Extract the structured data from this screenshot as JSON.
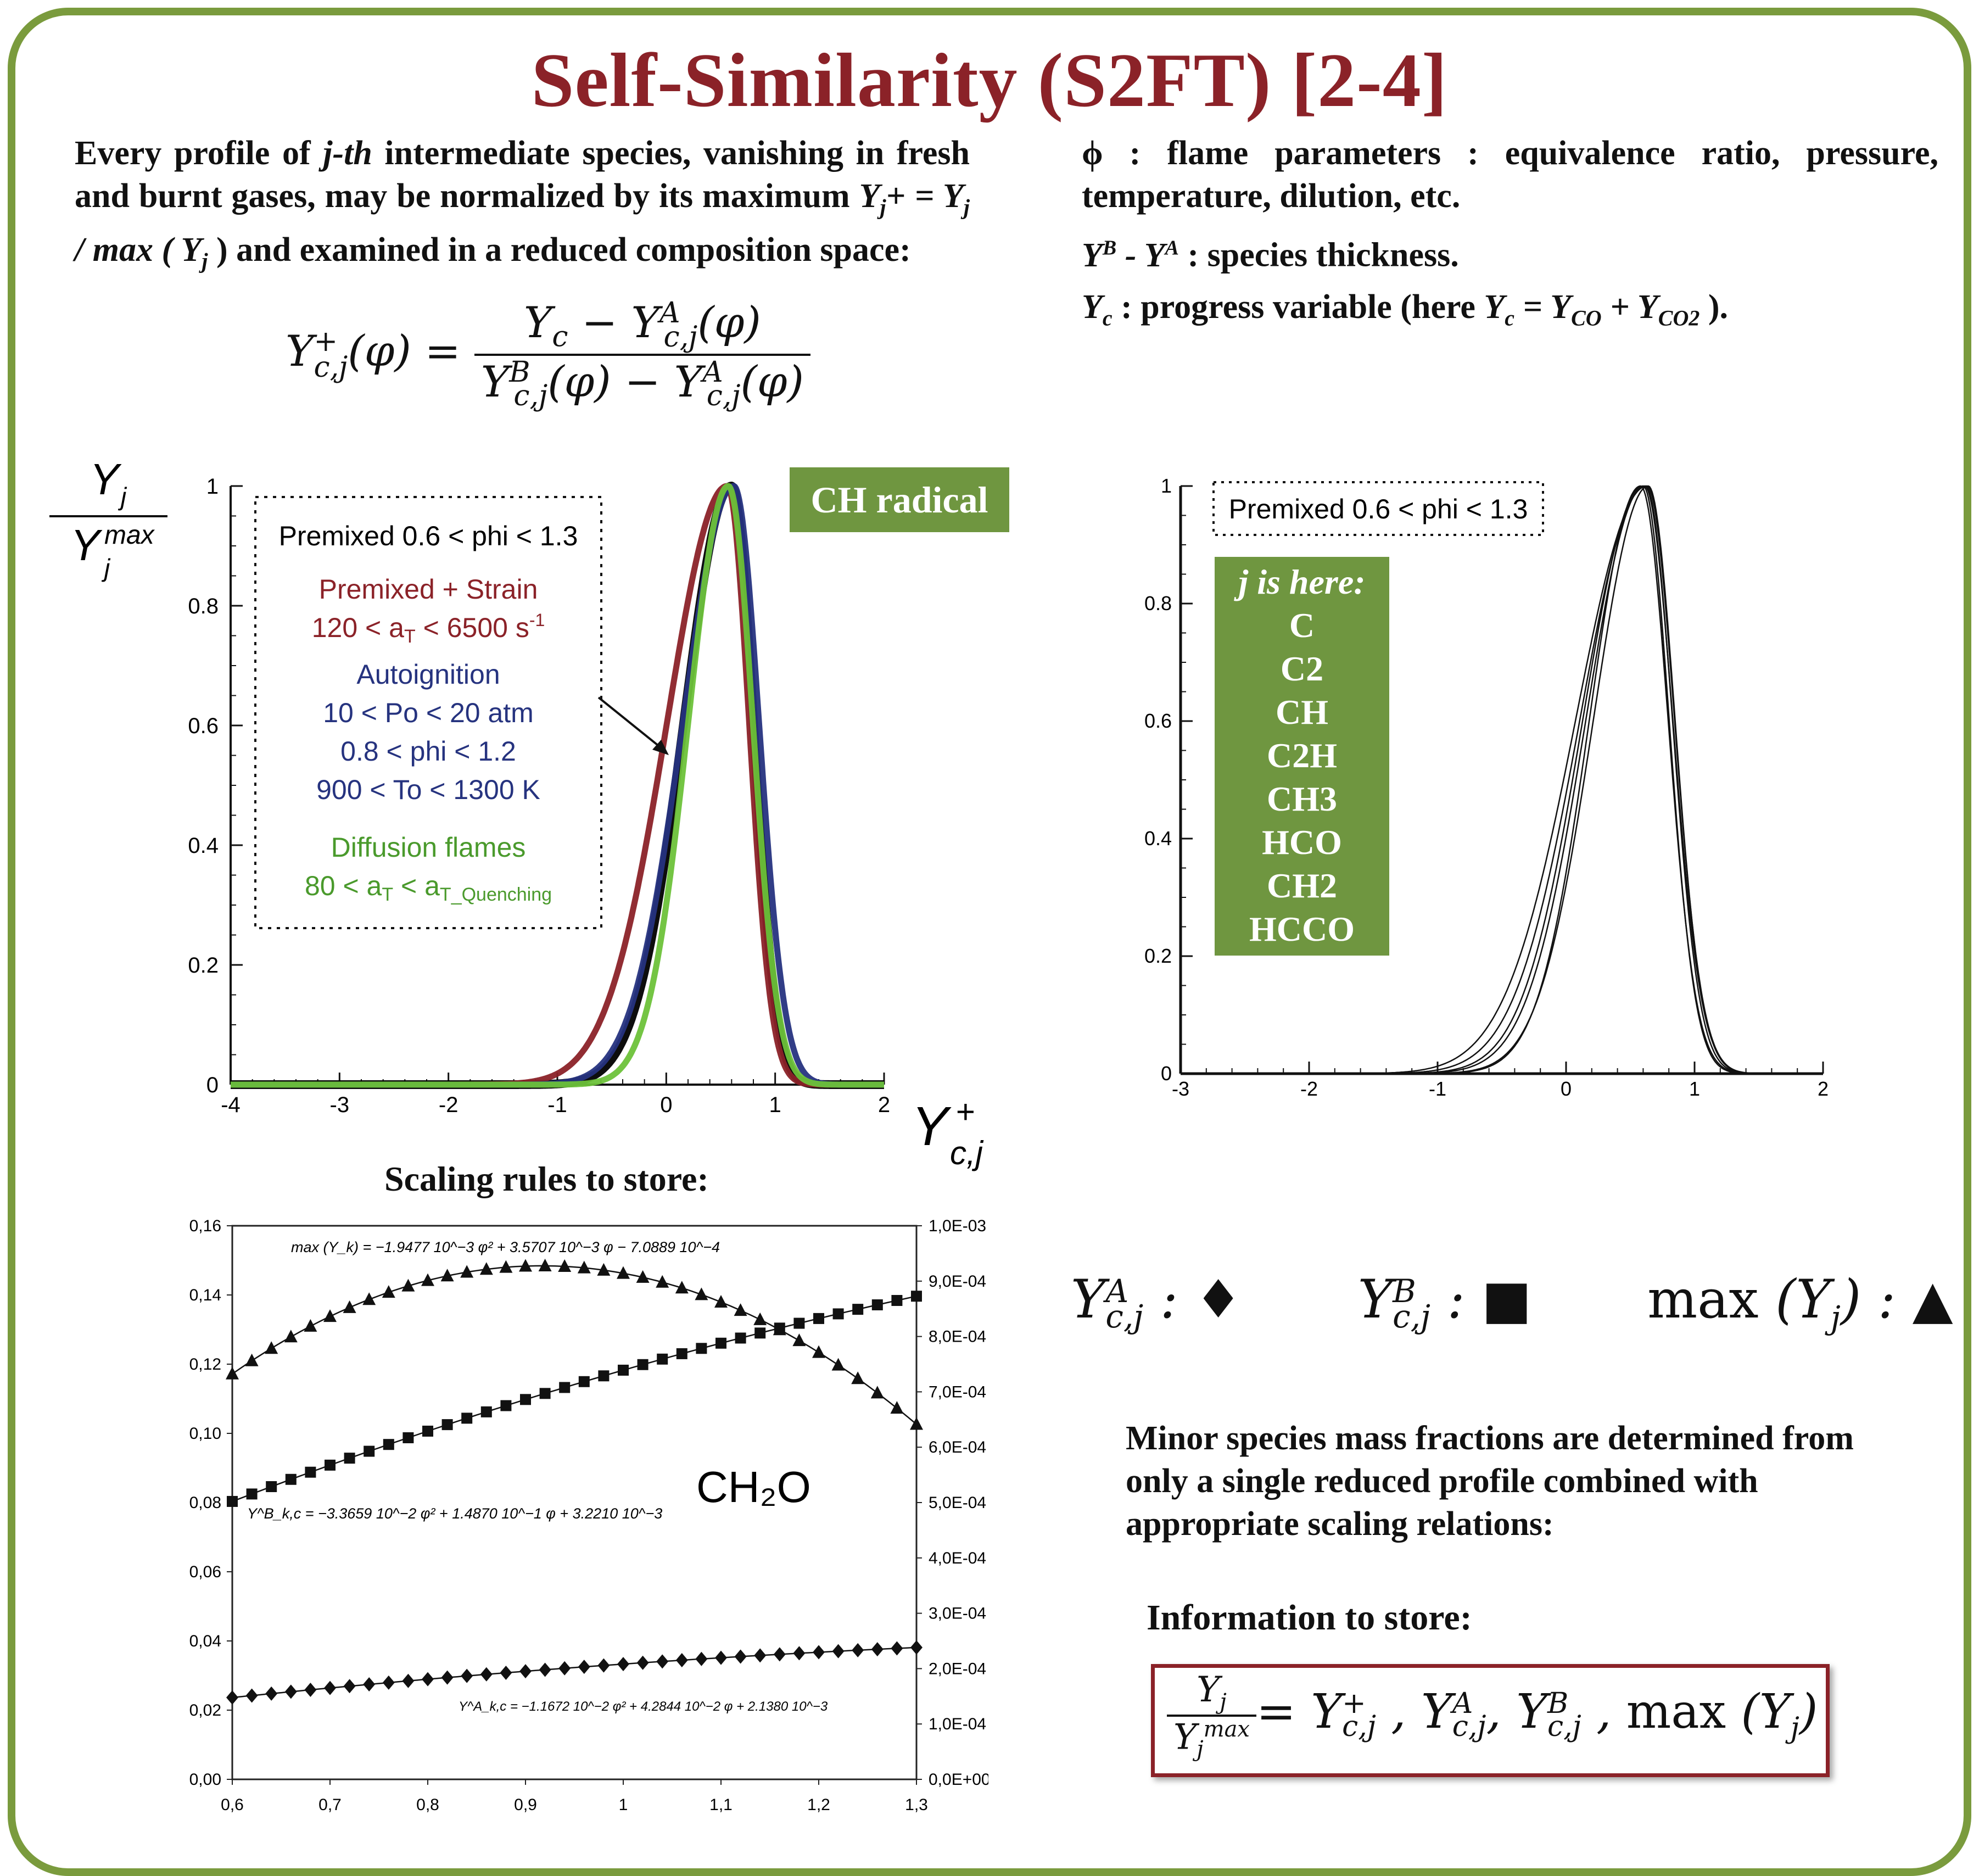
{
  "title": "Self-Similarity (S2FT) [2-4]",
  "intro": {
    "part1": "Every profile of ",
    "jth": "j-th",
    "part2": " intermediate species, vanishing in fresh and burnt gases, may be normalized by its maximum ",
    "yjplus": "Y",
    "eq_text": "+ = Y",
    "slash": " / max ( Y",
    "close": " ) and examined in a reduced composition space:"
  },
  "right_defs": {
    "phi_line": "ϕ : flame parameters : equivalence ratio, pressure, temperature, dilution, etc.",
    "thickness_line": " : species thickness.",
    "progress_line_a": " : progress variable (here ",
    "progress_line_b": " )."
  },
  "ch_radical_tag": "CH radical",
  "j_box": {
    "title": "j is here:",
    "species": [
      "C",
      "C2",
      "CH",
      "C2H",
      "CH3",
      "HCO",
      "CH2",
      "HCCO"
    ]
  },
  "scaling_title": "Scaling rules to store:",
  "symbols_legend": {
    "a_symbol": "♦",
    "b_symbol": "■",
    "max_symbol": "▲",
    "max_text": "max"
  },
  "minor_species_text": "Minor species mass fractions are determined from only a single reduced profile combined with appropriate scaling relations:",
  "info_title": "Information to store:",
  "ch2o_label": "CH₂O",
  "chart_data": [
    {
      "type": "line",
      "ylabel_top": "Y",
      "xlabel": "Y+ c,j",
      "xlim": [
        -4,
        2
      ],
      "ylim": [
        0,
        1
      ],
      "x_ticks": [
        "-4",
        "-3",
        "-2",
        "-1",
        "0",
        "1",
        "2"
      ],
      "y_ticks": [
        "0",
        "0.2",
        "0.4",
        "0.6",
        "0.8",
        "1"
      ],
      "legend_box": {
        "premixed": "Premixed 0.6 < phi < 1.3",
        "strain_title": "Premixed + Strain",
        "strain_range": "120 < a",
        "strain_unit": " < 6500 s",
        "autoignition_title": "Autoignition",
        "auto_p": "10 < Po < 20 atm",
        "auto_phi": "0.8 < phi < 1.2",
        "auto_T": "900 < To < 1300 K",
        "diffusion_title": "Diffusion flames",
        "diffusion_range": "80 < a",
        "diffusion_mid": " < a",
        "diffusion_sub": "T_Quenching"
      },
      "series": [
        {
          "name": "Premixed 0.6 < phi < 1.3",
          "color": "#000000",
          "peak_x": 0.6,
          "left_width": 0.62,
          "right_width": 0.33
        },
        {
          "name": "Premixed + Strain",
          "color": "#8b2228",
          "peak_x": 0.56,
          "left_width": 0.78,
          "right_width": 0.33
        },
        {
          "name": "Autoignition",
          "color": "#26337f",
          "peak_x": 0.62,
          "left_width": 0.66,
          "right_width": 0.38
        },
        {
          "name": "Diffusion flames",
          "color": "#6dc23a",
          "peak_x": 0.57,
          "left_width": 0.52,
          "right_width": 0.37
        }
      ]
    },
    {
      "type": "line",
      "xlim": [
        -3,
        2
      ],
      "ylim": [
        0,
        1
      ],
      "x_ticks": [
        "-3",
        "-2",
        "-1",
        "0",
        "1",
        "2"
      ],
      "y_ticks": [
        "0",
        "0.2",
        "0.4",
        "0.6",
        "0.8",
        "1"
      ],
      "legend": "Premixed 0.6 < phi < 1.3",
      "series": [
        {
          "peak_x": 0.62,
          "left_width": 0.72,
          "right_width": 0.34
        },
        {
          "peak_x": 0.6,
          "left_width": 0.66,
          "right_width": 0.33
        },
        {
          "peak_x": 0.64,
          "left_width": 0.6,
          "right_width": 0.34
        },
        {
          "peak_x": 0.58,
          "left_width": 0.56,
          "right_width": 0.35
        },
        {
          "peak_x": 0.63,
          "left_width": 0.78,
          "right_width": 0.35
        },
        {
          "peak_x": 0.61,
          "left_width": 0.64,
          "right_width": 0.36
        }
      ]
    },
    {
      "type": "scatter",
      "xlim": [
        0.6,
        1.3
      ],
      "ylim_left": [
        0,
        0.16
      ],
      "ylim_right": [
        0,
        0.001
      ],
      "x_ticks": [
        "0,6",
        "0,7",
        "0,8",
        "0,9",
        "1",
        "1,1",
        "1,2",
        "1,3"
      ],
      "y_left_ticks": [
        "0,00",
        "0,02",
        "0,04",
        "0,06",
        "0,08",
        "0,10",
        "0,12",
        "0,14",
        "0,16"
      ],
      "y_right_ticks": [
        "0,0E+00",
        "1,0E-04",
        "2,0E-04",
        "3,0E-04",
        "4,0E-04",
        "5,0E-04",
        "6,0E-04",
        "7,0E-04",
        "8,0E-04",
        "9,0E-04",
        "1,0E-03"
      ],
      "annotations": {
        "max_fit": "max (Y_k) = −1.9477 10^−3 φ² + 3.5707 10^−3 φ − 7.0889 10^−4",
        "b_fit": "Y^B_k,c = −3.3659 10^−2 φ² + 1.4870 10^−1 φ + 3.2210 10^−3",
        "a_fit": "Y^A_k,c = −1.1672 10^−2 φ² + 4.2844 10^−2 φ + 2.1380 10^−3"
      },
      "series": [
        {
          "name": "Y^B",
          "axis": "left",
          "marker": "square",
          "coeffs": [
            -0.033659,
            0.1487,
            0.003221
          ]
        },
        {
          "name": "Y^A",
          "axis": "left",
          "marker": "diamond",
          "coeffs": [
            -0.011672,
            0.042844,
            0.002138
          ]
        },
        {
          "name": "max(Y)",
          "axis": "right",
          "marker": "triangle",
          "coeffs": [
            -0.0019477,
            0.0035707,
            -0.00070889
          ]
        }
      ],
      "phi_start": 0.6,
      "phi_end": 1.3,
      "phi_step": 0.02
    }
  ]
}
